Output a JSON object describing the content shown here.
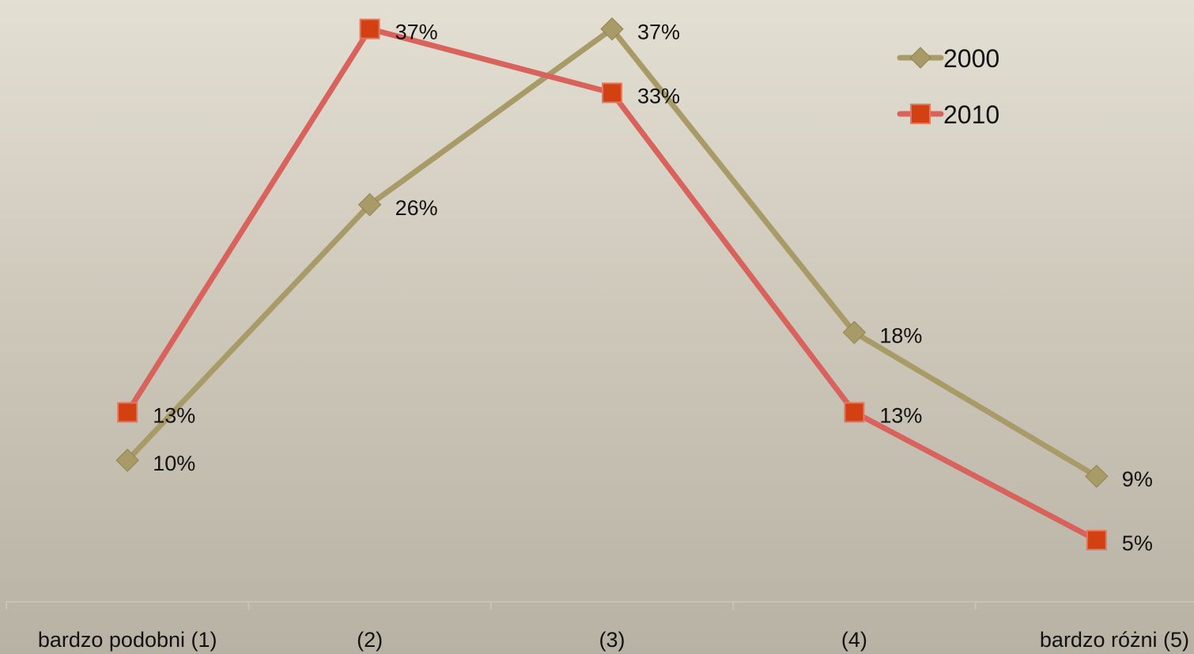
{
  "chart_data": {
    "type": "line",
    "title": "",
    "xlabel": "",
    "ylabel": "",
    "categories": [
      "bardzo podobni (1)",
      "(2)",
      "(3)",
      "(4)",
      "bardzo różni (5)"
    ],
    "ylim": [
      0,
      40
    ],
    "grid": false,
    "legend_position": "top-right",
    "series": [
      {
        "name": "2000",
        "values": [
          10,
          26,
          37,
          18,
          9
        ],
        "labels": [
          "10%",
          "26%",
          "37%",
          "18%",
          "9%"
        ],
        "color": "#a99b68",
        "marker": "diamond"
      },
      {
        "name": "2010",
        "values": [
          13,
          37,
          33,
          13,
          5
        ],
        "labels": [
          "13%",
          "37%",
          "33%",
          "13%",
          "5%"
        ],
        "color": "#d9625c",
        "marker": "square",
        "marker_color": "#d34012"
      }
    ]
  }
}
